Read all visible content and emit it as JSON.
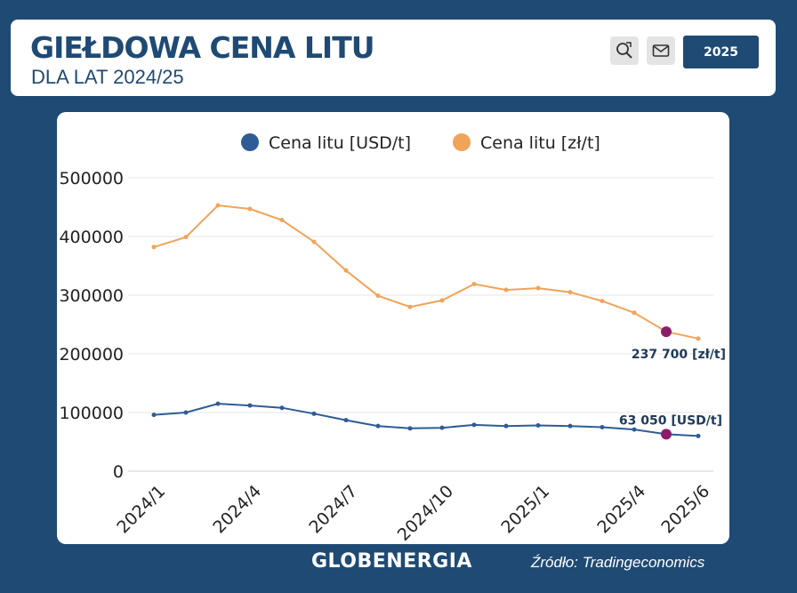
{
  "header": {
    "title": "GIEŁDOWA CENA LITU",
    "subtitle": "DLA LAT 2024/25",
    "year_button": "2025",
    "icons": [
      "zoom-icon",
      "mail-icon"
    ]
  },
  "footer": {
    "logo": "GLOBENERGIA",
    "source": "Źródło: Tradingeconomics"
  },
  "colors": {
    "background": "#1f4a74",
    "usd_series": "#2f5c94",
    "pln_series": "#efa45a",
    "highlight": "#8c1d6b"
  },
  "chart_data": {
    "type": "line",
    "title": "",
    "xlabel": "",
    "ylabel": "",
    "ylim": [
      0,
      500000
    ],
    "yticks": [
      0,
      100000,
      200000,
      300000,
      400000,
      500000
    ],
    "ytick_labels": [
      "0",
      "100000",
      "200000",
      "300000",
      "400000",
      "500000"
    ],
    "x": [
      "2024/1",
      "2024/2",
      "2024/3",
      "2024/4",
      "2024/5",
      "2024/6",
      "2024/7",
      "2024/8",
      "2024/9",
      "2024/10",
      "2024/11",
      "2024/12",
      "2025/1",
      "2025/2",
      "2025/3",
      "2025/4",
      "2025/5",
      "2025/6"
    ],
    "xtick_labels": [
      "2024/1",
      "2024/4",
      "2024/7",
      "2024/10",
      "2025/1",
      "2025/4",
      "2025/6"
    ],
    "grid": true,
    "legend_position": "top",
    "series": [
      {
        "name": "Cena litu [USD/t]",
        "values": [
          96000,
          100000,
          115000,
          112000,
          108000,
          98000,
          87000,
          77000,
          73000,
          74000,
          79000,
          77000,
          78000,
          77000,
          75000,
          71000,
          63050,
          60000
        ]
      },
      {
        "name": "Cena litu [zł/t]",
        "values": [
          382000,
          399000,
          453000,
          447000,
          428000,
          391000,
          342000,
          299000,
          280000,
          291000,
          319000,
          309000,
          312000,
          305000,
          290000,
          270000,
          237700,
          226000
        ]
      }
    ],
    "annotations": [
      {
        "series": 1,
        "index": 16,
        "text": "237 700 [zł/t]"
      },
      {
        "series": 0,
        "index": 16,
        "text": "63 050 [USD/t]"
      }
    ]
  }
}
